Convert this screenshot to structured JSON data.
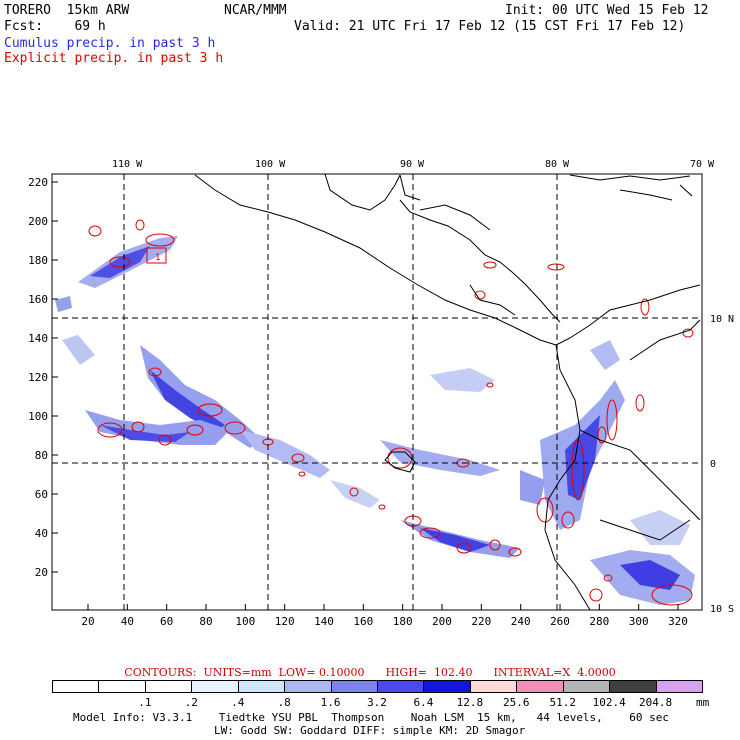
{
  "header": {
    "model": "TORERO  15km ARW",
    "org": "NCAR/MMM",
    "init": "Init: 00 UTC Wed 15 Feb 12",
    "fcst": "Fcst:    69 h",
    "valid": "Valid: 21 UTC Fri 17 Feb 12 (15 CST Fri 17 Feb 12)",
    "cumulus_label": "Cumulus precip. in past 3 h",
    "explicit_label": "Explicit precip. in past 3 h"
  },
  "map": {
    "lon_labels": [
      "110 W",
      "100 W",
      "90 W",
      "80 W",
      "70 W"
    ],
    "lat_labels": [
      "10 N",
      "0",
      "10 S"
    ],
    "y_ticks": [
      "220",
      "200",
      "180",
      "160",
      "140",
      "120",
      "100",
      "80",
      "60",
      "40",
      "20"
    ],
    "x_ticks": [
      "20",
      "40",
      "60",
      "80",
      "100",
      "120",
      "140",
      "160",
      "180",
      "200",
      "220",
      "240",
      "260",
      "280",
      "300",
      "320"
    ],
    "contour_label": "1"
  },
  "legend": {
    "contours_text": "CONTOURS:  UNITS=mm  LOW= 0.10000      HIGH=  102.40      INTERVAL=X  4.0000",
    "labels": [
      ".1",
      ".2",
      ".4",
      ".8",
      "1.6",
      "3.2",
      "6.4",
      "12.8",
      "25.6",
      "51.2",
      "102.4",
      "204.8"
    ],
    "units": "mm",
    "colors": [
      "#ffffff",
      "#ffffff",
      "#ffffff",
      "#e8f3ff",
      "#cfe6fa",
      "#a9b8f2",
      "#7a84ec",
      "#4a4ae6",
      "#1414e0",
      "#ffd8d8",
      "#f090b8",
      "#b4b4b4",
      "#404040",
      "#d8a0f0"
    ]
  },
  "footer": {
    "line1": "Model Info: V3.3.1    Tiedtke YSU PBL  Thompson    Noah LSM  15 km,   44 levels,    60 sec",
    "line2": "LW: Godd SW: Goddard DIFF: simple KM: 2D Smagor"
  }
}
